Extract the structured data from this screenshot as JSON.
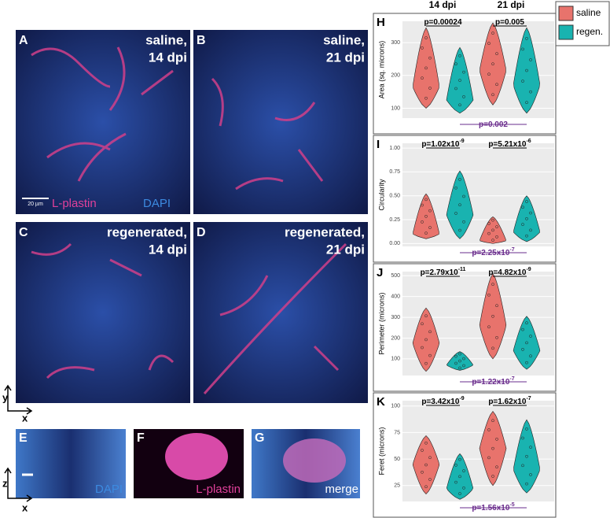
{
  "images": [
    {
      "letter": "A",
      "caption": [
        "saline,",
        "14 dpi"
      ]
    },
    {
      "letter": "B",
      "caption": [
        "saline,",
        "21 dpi"
      ]
    },
    {
      "letter": "C",
      "caption": [
        "regenerated,",
        "14 dpi"
      ]
    },
    {
      "letter": "D",
      "caption": [
        "regenerated,",
        "21 dpi"
      ]
    }
  ],
  "scale_bar": "20 µm",
  "stain_labels": [
    "L-plastin",
    "DAPI"
  ],
  "ortho": [
    {
      "letter": "E",
      "label": "DAPI"
    },
    {
      "letter": "F",
      "label": "L-plastin"
    },
    {
      "letter": "G",
      "label": "merge"
    }
  ],
  "axes_xy": [
    "y",
    "x"
  ],
  "axes_zx": [
    "z",
    "x"
  ],
  "columns": [
    "14 dpi",
    "21 dpi"
  ],
  "legend": [
    {
      "name": "saline",
      "color": "#e8736c"
    },
    {
      "name": "regen.",
      "color": "#19b3b0"
    }
  ],
  "plots": [
    {
      "letter": "H",
      "ylabel": "Area (sq. microns)",
      "ylim": [
        70,
        365
      ],
      "yticks": [
        100,
        200,
        300
      ],
      "violins": [
        [
          100,
          165,
          345
        ],
        [
          85,
          125,
          285
        ],
        [
          110,
          215,
          360
        ],
        [
          85,
          170,
          345
        ]
      ],
      "pvalues": [
        {
          "text": "p=0.00024"
        },
        {
          "text": "p=0.005"
        },
        {
          "text": "p=0.002"
        }
      ]
    },
    {
      "letter": "I",
      "ylabel": "Circularity",
      "ylim": [
        -0.03,
        1.05
      ],
      "yticks": [
        {
          "value": 0,
          "label": "0.00"
        },
        0.25,
        {
          "value": 0.5,
          "label": "0.50"
        },
        0.75,
        {
          "value": 1,
          "label": "1.00"
        }
      ],
      "violins": [
        [
          0.05,
          0.1,
          0.52
        ],
        [
          0.05,
          0.3,
          0.76
        ],
        [
          0,
          0.03,
          0.28
        ],
        [
          0.02,
          0.12,
          0.5
        ]
      ],
      "pvalues": [
        {
          "text": "p=1.02x10",
          "exp": "-9"
        },
        {
          "text": "p=5.21x10",
          "exp": "-6"
        },
        {
          "text": "p=2.25x10",
          "exp": "-7"
        }
      ]
    },
    {
      "letter": "J",
      "ylabel": "Perimeter (microns)",
      "ylim": [
        20,
        520
      ],
      "yticks": [
        100,
        200,
        300,
        400,
        500
      ],
      "violins": [
        [
          40,
          175,
          345
        ],
        [
          45,
          70,
          135
        ],
        [
          100,
          260,
          510
        ],
        [
          50,
          140,
          305
        ]
      ],
      "pvalues": [
        {
          "text": "p=2.79x10",
          "exp": "-11"
        },
        {
          "text": "p=4.82x10",
          "exp": "-9"
        },
        {
          "text": "p=1.22x10",
          "exp": "-7"
        }
      ]
    },
    {
      "letter": "K",
      "ylabel": "Feret (microns)",
      "ylim": [
        10,
        105
      ],
      "yticks": [
        25,
        50,
        75,
        100
      ],
      "violins": [
        [
          17,
          45,
          72
        ],
        [
          12,
          22,
          55
        ],
        [
          25,
          60,
          95
        ],
        [
          18,
          40,
          87
        ]
      ],
      "pvalues": [
        {
          "text": "p=3.42x10",
          "exp": "-9"
        },
        {
          "text": "p=1.62x10",
          "exp": "-7"
        },
        {
          "text": "p=1.56x10",
          "exp": "-5"
        }
      ]
    }
  ]
}
